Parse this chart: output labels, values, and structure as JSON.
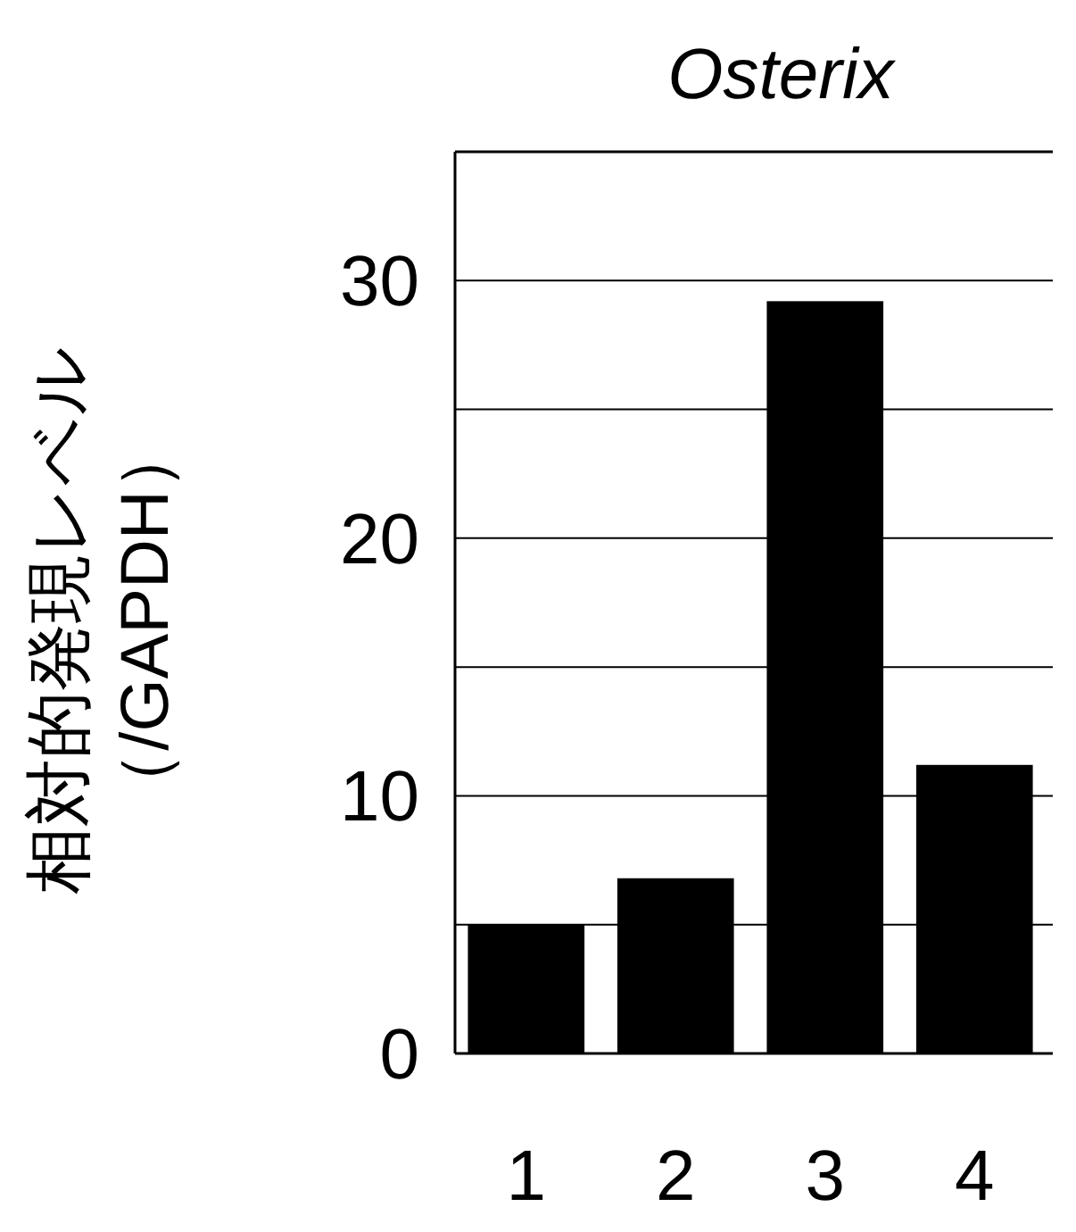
{
  "chart_data": {
    "type": "bar",
    "title": "Osterix",
    "ylabel": "相対的発現レベル（/GAPDH）",
    "categories": [
      "1",
      "2",
      "3",
      "4"
    ],
    "values": [
      5,
      6.8,
      29.2,
      11.2
    ],
    "color": "#000000",
    "ylim": [
      0,
      35
    ],
    "yticks": [
      0,
      {
        "value": 5,
        "label": null
      },
      10,
      {
        "value": 15,
        "label": null
      },
      20,
      {
        "value": 25,
        "label": null
      },
      30
    ],
    "grid": "y"
  }
}
